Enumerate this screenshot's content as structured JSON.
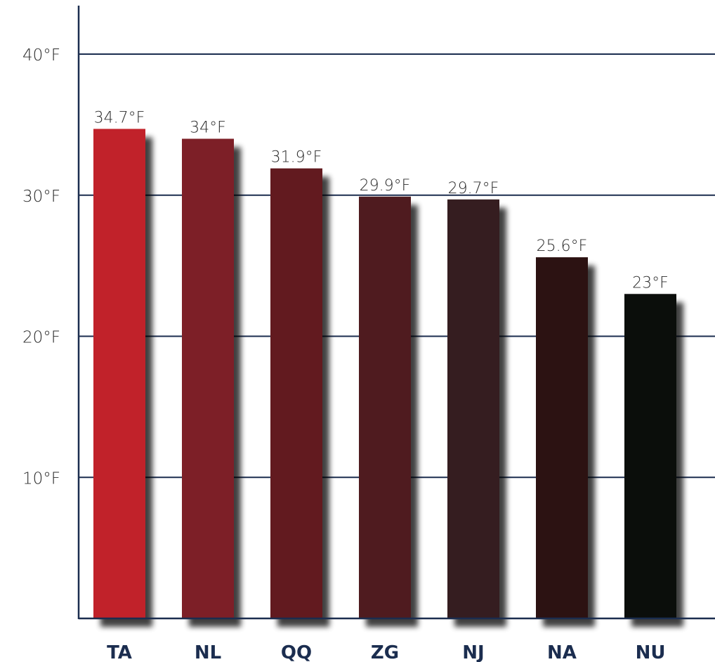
{
  "chart_data": {
    "type": "bar",
    "title": "",
    "xlabel": "",
    "ylabel": "",
    "categories": [
      "TA",
      "NL",
      "QQ",
      "ZG",
      "NJ",
      "NA",
      "NU"
    ],
    "values": [
      34.7,
      34,
      31.9,
      29.9,
      29.7,
      25.6,
      23
    ],
    "value_labels": [
      "34.7°F",
      "34°F",
      "31.9°F",
      "29.9°F",
      "29.7°F",
      "25.6°F",
      "23°F"
    ],
    "bar_colors": [
      "#c1222a",
      "#7d1f27",
      "#621a1f",
      "#4f1b1f",
      "#351d20",
      "#2c1212",
      "#0b0e0b"
    ],
    "yticks": [
      10,
      20,
      30,
      40
    ],
    "ytick_labels": [
      "10°F",
      "20°F",
      "30°F",
      "40°F"
    ],
    "ylim": [
      0,
      40
    ],
    "grid": true,
    "legend": "none",
    "colors": {
      "gridline": "#1b2d4f",
      "axis": "#1b2d4f",
      "category_label": "#1b2d4f",
      "text": "#2b2b2b"
    }
  }
}
